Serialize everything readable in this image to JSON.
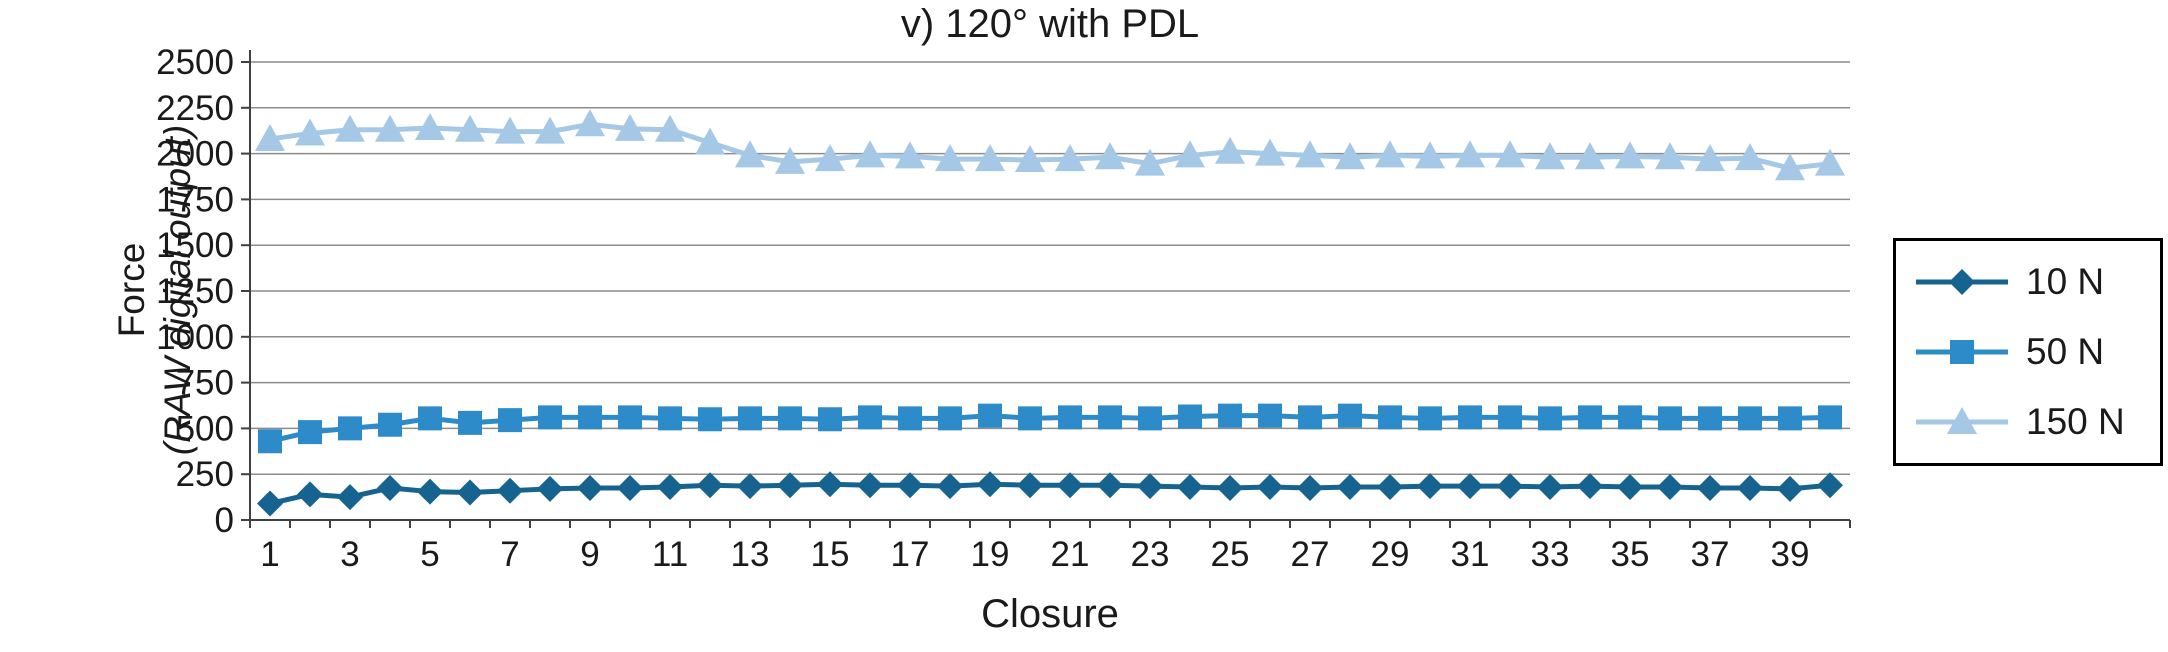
{
  "chart_data": {
    "type": "line",
    "title": "v) 120° with PDL",
    "xlabel": "Closure",
    "ylabel_line1": "Force",
    "ylabel_line2": "(RAW digital output)",
    "ylim": [
      0,
      2500
    ],
    "ytick_step": 250,
    "grid": true,
    "grid_color": "#8c8c8c",
    "axis_color": "#404040",
    "legend_position": "right",
    "x": [
      1,
      2,
      3,
      4,
      5,
      6,
      7,
      8,
      9,
      10,
      11,
      12,
      13,
      14,
      15,
      16,
      17,
      18,
      19,
      20,
      21,
      22,
      23,
      24,
      25,
      26,
      27,
      28,
      29,
      30,
      31,
      32,
      33,
      34,
      35,
      36,
      37,
      38,
      39,
      40
    ],
    "x_tick_labels": [
      1,
      3,
      5,
      7,
      9,
      11,
      13,
      15,
      17,
      19,
      21,
      23,
      25,
      27,
      29,
      31,
      33,
      35,
      37,
      39
    ],
    "series": [
      {
        "name": "10 N",
        "marker": "diamond",
        "color": "#17638f",
        "values": [
          90,
          140,
          125,
          175,
          155,
          150,
          160,
          170,
          175,
          175,
          180,
          190,
          185,
          190,
          195,
          190,
          190,
          185,
          195,
          190,
          190,
          190,
          185,
          180,
          175,
          180,
          175,
          180,
          180,
          185,
          185,
          185,
          180,
          185,
          180,
          180,
          175,
          175,
          170,
          190
        ]
      },
      {
        "name": "50 N",
        "marker": "square",
        "color": "#2e8bc9",
        "values": [
          430,
          480,
          500,
          520,
          555,
          530,
          545,
          560,
          560,
          560,
          555,
          550,
          555,
          555,
          550,
          560,
          555,
          555,
          570,
          555,
          560,
          560,
          555,
          565,
          570,
          570,
          560,
          570,
          560,
          555,
          560,
          560,
          555,
          560,
          560,
          555,
          555,
          555,
          555,
          560
        ]
      },
      {
        "name": "150 N",
        "marker": "triangle",
        "color": "#a5c8e6",
        "values": [
          2080,
          2110,
          2130,
          2130,
          2140,
          2130,
          2120,
          2120,
          2160,
          2135,
          2130,
          2060,
          1990,
          1955,
          1970,
          1990,
          1985,
          1970,
          1970,
          1965,
          1970,
          1980,
          1945,
          1990,
          2010,
          2000,
          1990,
          1980,
          1990,
          1985,
          1990,
          1990,
          1980,
          1980,
          1985,
          1980,
          1970,
          1975,
          1920,
          1945
        ]
      }
    ]
  }
}
